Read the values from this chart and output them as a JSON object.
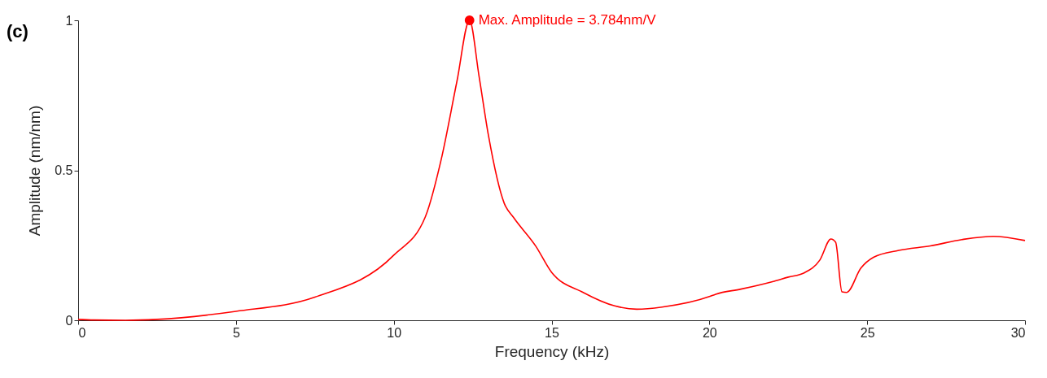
{
  "chart_data": {
    "type": "line",
    "xlabel": "Frequency (kHz)",
    "ylabel": "Amplitude (nm/nm)",
    "xlim": [
      0,
      30
    ],
    "ylim": [
      0,
      1
    ],
    "xticks": [
      0,
      5,
      10,
      15,
      20,
      25,
      30
    ],
    "yticks": [
      0,
      0.5,
      1
    ],
    "grid": false,
    "marker": "none",
    "line_style": "solid",
    "series": [
      {
        "color": "#ff0000",
        "x": [
          0,
          0.5,
          1.5,
          2.5,
          5,
          7.5,
          10,
          11,
          11.5,
          12,
          12.4,
          12.7,
          13,
          13.5,
          13.8,
          14.5,
          15,
          16,
          17,
          17.7,
          18.5,
          20,
          20.2,
          21,
          22,
          22.5,
          23,
          23.5,
          23.85,
          24.0,
          24.2,
          24.35,
          24.8,
          25.2,
          26,
          27,
          28,
          29,
          30
        ],
        "values": [
          0.003,
          0.001,
          0.0,
          0.003,
          0.03,
          0.077,
          0.217,
          0.345,
          0.535,
          0.796,
          1.0,
          0.815,
          0.616,
          0.39,
          0.342,
          0.247,
          0.16,
          0.093,
          0.048,
          0.037,
          0.044,
          0.079,
          0.087,
          0.104,
          0.129,
          0.144,
          0.158,
          0.201,
          0.271,
          0.26,
          0.095,
          0.093,
          0.174,
          0.21,
          0.233,
          0.248,
          0.269,
          0.28,
          0.266
        ]
      },
      {
        "type": "scatter",
        "marker": "circle",
        "color": "#ff0000",
        "x": [
          12.4
        ],
        "values": [
          1.0
        ]
      }
    ],
    "annotations": [
      {
        "text": "Max. Amplitude = 3.784nm/V",
        "x": 12.4,
        "y": 1.0
      },
      "(c)"
    ]
  }
}
